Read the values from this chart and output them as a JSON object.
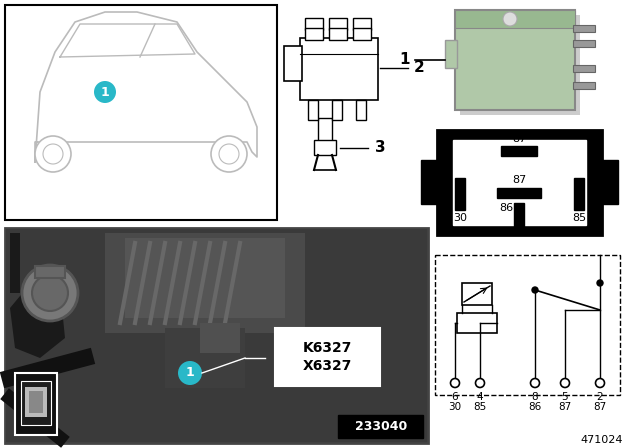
{
  "bg_color": "#ffffff",
  "label_1": "1",
  "label_2": "2",
  "label_3": "3",
  "k6327": "K6327",
  "x6327": "X6327",
  "code233040": "233040",
  "code471024": "471024",
  "cyan_color": "#29b8c8",
  "relay_green": "#b0c8a8",
  "relay_green2": "#98b890",
  "car_line_color": "#bbbbbb",
  "photo_bg": "#585858",
  "photo_dark": "#303030",
  "photo_mid": "#484848",
  "photo_light": "#686868",
  "white": "#ffffff",
  "black": "#000000",
  "gray1": "#888888",
  "gray2": "#aaaaaa",
  "gray3": "#cccccc",
  "dark_gray": "#222222"
}
